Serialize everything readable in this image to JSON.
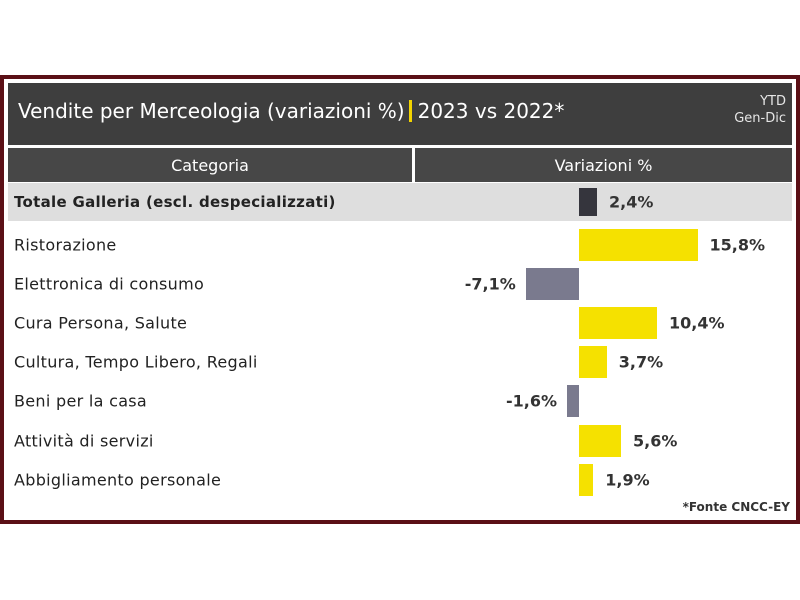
{
  "header": {
    "title_main": "Vendite per Merceologia (variazioni %)",
    "title_years": "2023 vs 2022*",
    "period_line1": "YTD",
    "period_line2": "Gen-Dic"
  },
  "columns": [
    "Categoria",
    "Variazioni %"
  ],
  "source": "*Fonte CNCC-EY",
  "colors": {
    "total": "#35353d",
    "positive": "#f5e100",
    "negative": "#7a7a8e",
    "frame": "#5b1016"
  },
  "chart_data": {
    "type": "bar",
    "orientation": "horizontal",
    "title": "Vendite per Merceologia (variazioni %) | 2023 vs 2022*",
    "categories": [
      "Totale Galleria (escl. despecializzati)",
      "Ristorazione",
      "Elettronica di consumo",
      "Cura Persona, Salute",
      "Cultura, Tempo Libero, Regali",
      "Beni per la casa",
      "Attività di servizi",
      "Abbigliamento personale"
    ],
    "values": [
      2.4,
      15.8,
      -7.1,
      10.4,
      3.7,
      -1.6,
      5.6,
      1.9
    ],
    "labels": [
      "2,4%",
      "15,8%",
      "-7,1%",
      "10,4%",
      "3,7%",
      "-1,6%",
      "5,6%",
      "1,9%"
    ],
    "unit": "%"
  }
}
